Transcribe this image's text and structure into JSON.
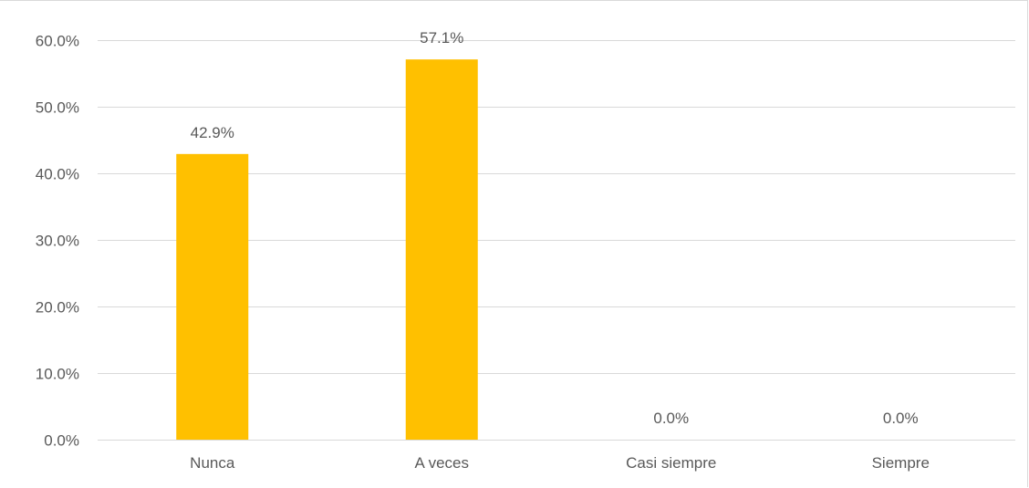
{
  "chart_data": {
    "type": "bar",
    "categories": [
      "Nunca",
      "A veces",
      "Casi siempre",
      "Siempre"
    ],
    "values": [
      42.9,
      57.1,
      0.0,
      0.0
    ],
    "data_labels": [
      "42.9%",
      "57.1%",
      "0.0%",
      "0.0%"
    ],
    "y_ticks": [
      0,
      10,
      20,
      30,
      40,
      50,
      60
    ],
    "y_tick_labels": [
      "0.0%",
      "10.0%",
      "20.0%",
      "30.0%",
      "40.0%",
      "50.0%",
      "60.0%"
    ],
    "ylim": [
      0,
      60
    ],
    "grid": true,
    "legend": "none",
    "title": "",
    "xlabel": "",
    "ylabel": "",
    "colors": {
      "bar": "#ffc000",
      "grid": "#d9d9d9",
      "text": "#595959"
    }
  }
}
